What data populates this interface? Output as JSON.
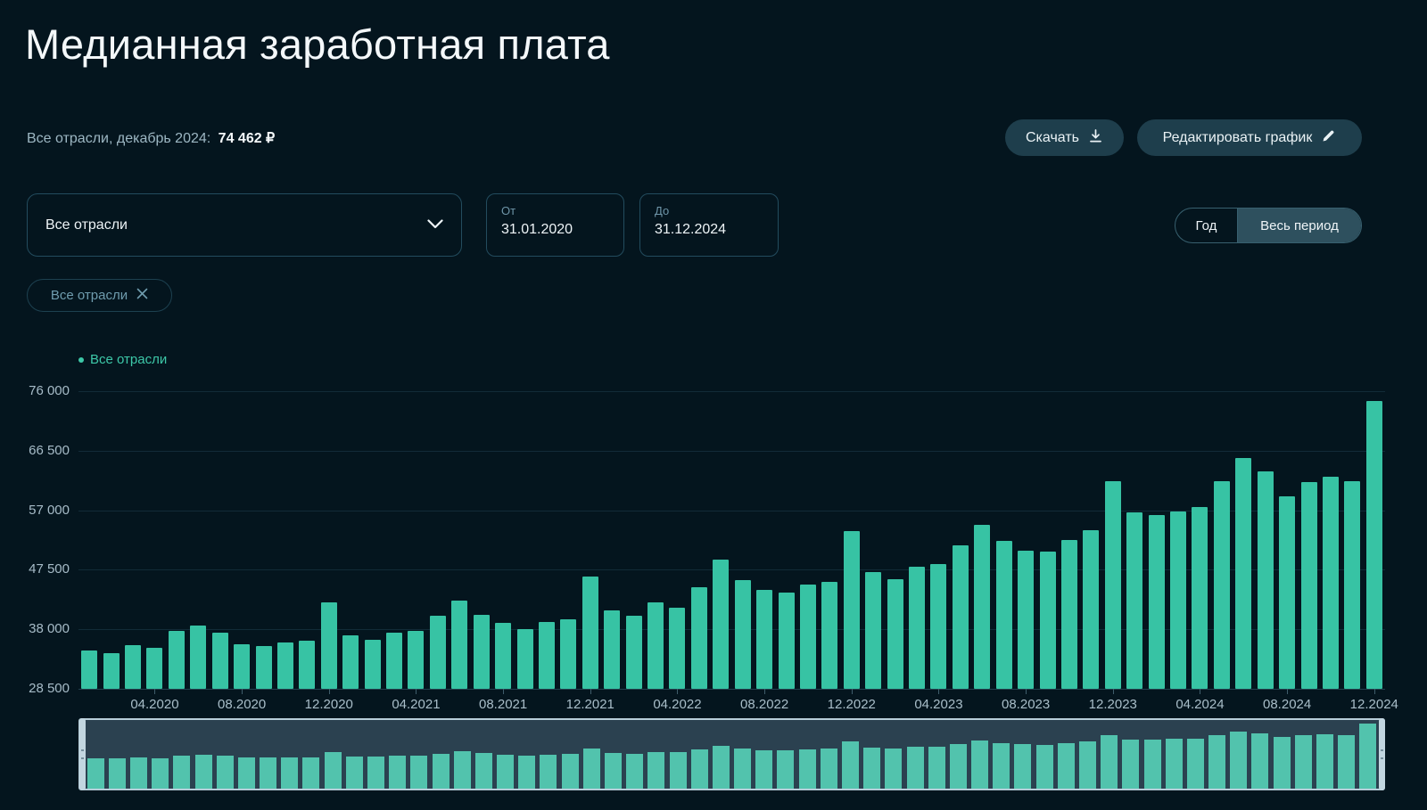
{
  "page": {
    "title": "Медианная заработная плата"
  },
  "subtitle": {
    "label": "Все отрасли, декабрь 2024:",
    "value": "74 462 ₽"
  },
  "actions": {
    "download_label": "Скачать",
    "edit_label": "Редактировать график"
  },
  "filters": {
    "industry_select": {
      "value": "Все отрасли"
    },
    "date_from": {
      "label": "От",
      "value": "31.01.2020"
    },
    "date_to": {
      "label": "До",
      "value": "31.12.2024"
    },
    "period_toggle": {
      "year_label": "Год",
      "all_label": "Весь период",
      "active": "Весь период"
    }
  },
  "chip": {
    "label": "Все отрасли"
  },
  "colors": {
    "background": "#04151e",
    "bar": "#37c3a4",
    "minimap_bar": "#52c3ad",
    "accent_teal": "#3dc8a8",
    "panel_border": "#234c5e",
    "button_bg": "#1e3e4c",
    "toggle_active_bg": "#2e505e",
    "axis_text": "#a7bcc8",
    "muted_text": "#6f96a9"
  },
  "chart_data": {
    "type": "bar",
    "title": "Медианная заработная плата",
    "legend": [
      {
        "label": "Все отрасли",
        "color": "#3dc8a8"
      }
    ],
    "legend_position": "top-left",
    "grid": "horizontal",
    "ylim": [
      28500,
      76000
    ],
    "y_ticks": [
      {
        "value": 76000,
        "label": "76 000"
      },
      {
        "value": 66500,
        "label": "66 500"
      },
      {
        "value": 57000,
        "label": "57 000"
      },
      {
        "value": 47500,
        "label": "47 500"
      },
      {
        "value": 38000,
        "label": "38 000"
      },
      {
        "value": 28500,
        "label": "28 500"
      }
    ],
    "x": [
      "01.2020",
      "02.2020",
      "03.2020",
      "04.2020",
      "05.2020",
      "06.2020",
      "07.2020",
      "08.2020",
      "09.2020",
      "10.2020",
      "11.2020",
      "12.2020",
      "01.2021",
      "02.2021",
      "03.2021",
      "04.2021",
      "05.2021",
      "06.2021",
      "07.2021",
      "08.2021",
      "09.2021",
      "10.2021",
      "11.2021",
      "12.2021",
      "01.2022",
      "02.2022",
      "03.2022",
      "04.2022",
      "05.2022",
      "06.2022",
      "07.2022",
      "08.2022",
      "09.2022",
      "10.2022",
      "11.2022",
      "12.2022",
      "01.2023",
      "02.2023",
      "03.2023",
      "04.2023",
      "05.2023",
      "06.2023",
      "07.2023",
      "08.2023",
      "09.2023",
      "10.2023",
      "11.2023",
      "12.2023",
      "01.2024",
      "02.2024",
      "03.2024",
      "04.2024",
      "05.2024",
      "06.2024",
      "07.2024",
      "08.2024",
      "09.2024",
      "10.2024",
      "11.2024",
      "12.2024"
    ],
    "values": [
      34600,
      34250,
      35400,
      35100,
      37750,
      38600,
      37400,
      35600,
      35300,
      35850,
      36200,
      42300,
      37050,
      36350,
      37450,
      37750,
      40200,
      42600,
      40300,
      39000,
      38050,
      39150,
      39600,
      46350,
      40950,
      40100,
      42300,
      41400,
      44700,
      49100,
      45800,
      44350,
      43800,
      45150,
      45550,
      53700,
      47200,
      46000,
      48000,
      48400,
      51400,
      54650,
      52100,
      50500,
      50450,
      52250,
      53850,
      61600,
      56600,
      56200,
      56800,
      57500,
      61600,
      65300,
      63200,
      59250,
      61500,
      62400,
      61700,
      74462
    ],
    "x_tick_every": 4,
    "x_tick_start_index": 3,
    "series_name": "Все отрасли"
  }
}
